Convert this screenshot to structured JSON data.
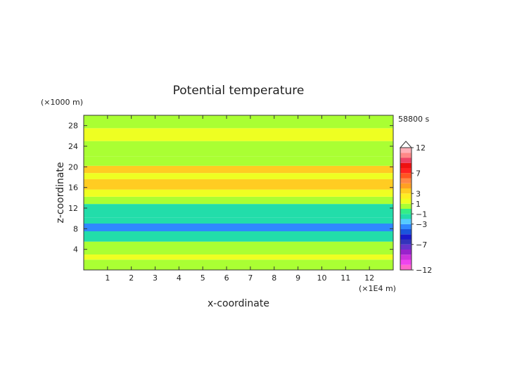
{
  "chart_data": {
    "type": "heatmap",
    "title": "Potential temperature",
    "xlabel": "x-coordinate",
    "ylabel": "z-coordinate",
    "x_unit_label": "(×1E4 m)",
    "y_unit_label": "(×1000 m)",
    "time_label": "58800 s",
    "xlim": [
      0,
      13
    ],
    "ylim": [
      0,
      30
    ],
    "x_ticks": [
      1,
      2,
      3,
      4,
      5,
      6,
      7,
      8,
      9,
      10,
      11,
      12
    ],
    "y_ticks": [
      4,
      8,
      12,
      16,
      20,
      24,
      28
    ],
    "colorbar": {
      "levels": [
        -12,
        -11,
        -10,
        -9,
        -8,
        -7,
        -6,
        -5,
        -4,
        -3,
        -2,
        -1,
        0,
        1,
        2,
        3,
        4,
        5,
        6,
        7,
        8,
        9,
        10,
        11,
        12
      ],
      "tick_labels": [
        "12",
        "7",
        "3",
        "1",
        "−1",
        "−3",
        "−7",
        "−12"
      ],
      "tick_values": [
        12,
        7,
        3,
        1,
        -1,
        -3,
        -7,
        -12
      ],
      "extend_max": true,
      "colors": [
        "#ff66cc",
        "#ee44ee",
        "#cc33dd",
        "#9922cc",
        "#6633cc",
        "#3333bb",
        "#1a1acc",
        "#1a55dd",
        "#2f88ff",
        "#55ccff",
        "#22ddaa",
        "#33ee88",
        "#aaff33",
        "#eeff22",
        "#ffee22",
        "#ffcc22",
        "#ffa022",
        "#ff8844",
        "#ff5522",
        "#ff2222",
        "#ee1111",
        "#ee4466",
        "#ff8888",
        "#ffb0b8"
      ]
    },
    "bands": [
      {
        "z_range": [
          0,
          2
        ],
        "value": 0.5
      },
      {
        "z_range": [
          2,
          3
        ],
        "value": 1.2
      },
      {
        "z_range": [
          3,
          5.5
        ],
        "value": 0.3
      },
      {
        "z_range": [
          5.5,
          7.5
        ],
        "value": -1.2
      },
      {
        "z_range": [
          7.5,
          9
        ],
        "value": -3.2
      },
      {
        "z_range": [
          9,
          10.2
        ],
        "value": -1.8
      },
      {
        "z_range": [
          10.2,
          12.8
        ],
        "value": -1.3
      },
      {
        "z_range": [
          12.8,
          14.2
        ],
        "value": 0.1
      },
      {
        "z_range": [
          14.2,
          15.6
        ],
        "value": 1.5
      },
      {
        "z_range": [
          15.6,
          17.6
        ],
        "value": 3.4
      },
      {
        "z_range": [
          17.6,
          18.8
        ],
        "value": 1.7
      },
      {
        "z_range": [
          18.8,
          20.2
        ],
        "value": 3.0
      },
      {
        "z_range": [
          20.2,
          22
        ],
        "value": 0.4
      },
      {
        "z_range": [
          22,
          25
        ],
        "value": 0.9
      },
      {
        "z_range": [
          25,
          27.5
        ],
        "value": 1.2
      },
      {
        "z_range": [
          27.5,
          30
        ],
        "value": 0.6
      }
    ]
  }
}
